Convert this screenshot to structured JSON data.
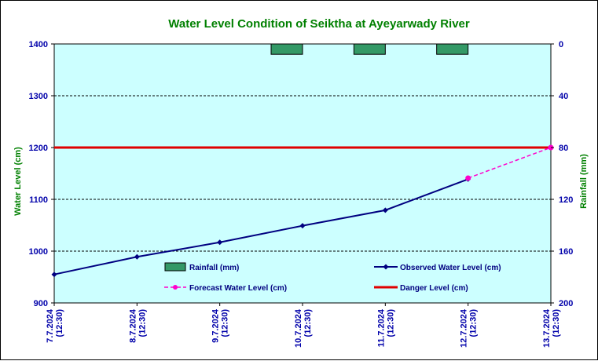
{
  "colors": {
    "plot_bg": "#ccffff",
    "observed": "#000080",
    "forecast": "#ff00cc",
    "danger": "#e00000",
    "rainfall_fill": "#339966",
    "title": "#008000",
    "axis_text": "#0000aa",
    "axis_label": "#008000"
  },
  "chart_data": {
    "type": "line",
    "title": "Water Level Condition of Seiktha at Ayeyarwady River",
    "ylabel": "Water Level (cm)",
    "y2label": "Rainfall (mm)",
    "ylim": [
      900,
      1400
    ],
    "y_ticks": [
      "900",
      "1000",
      "1100",
      "1200",
      "1300",
      "1400"
    ],
    "y2lim_inverted": [
      0,
      200
    ],
    "y2_ticks": [
      "0",
      "40",
      "80",
      "120",
      "160",
      "200"
    ],
    "categories": [
      [
        "7.7.2024",
        "(12:30)"
      ],
      [
        "8.7.2024",
        "(12:30)"
      ],
      [
        "9.7.2024",
        "(12:30)"
      ],
      [
        "10.7.2024",
        "(12:30)"
      ],
      [
        "11.7.2024",
        "(12:30)"
      ],
      [
        "12.7.2024",
        "(12:30)"
      ],
      [
        "13.7.2024",
        "(12:30)"
      ]
    ],
    "grid": true,
    "series": [
      {
        "name": "Observed Water Level (cm)",
        "kind": "line",
        "values": [
          955,
          989,
          1017,
          1049,
          1079,
          1139,
          null
        ]
      },
      {
        "name": "Forecast Water Level (cm)",
        "kind": "dashed-line",
        "values": [
          null,
          null,
          null,
          null,
          null,
          1141,
          1200
        ]
      },
      {
        "name": "Danger Level (cm)",
        "kind": "horizontal-line",
        "value": 1200
      },
      {
        "name": "Rainfall (mm)",
        "kind": "bar-secondary-axis",
        "values": [
          null,
          null,
          null,
          8,
          8,
          8,
          null
        ]
      }
    ],
    "legend": {
      "placement": "inside-bottom",
      "entries": [
        "Rainfall (mm)",
        "Observed Water Level (cm)",
        "Forecast Water Level (cm)",
        "Danger Level (cm)"
      ]
    }
  }
}
